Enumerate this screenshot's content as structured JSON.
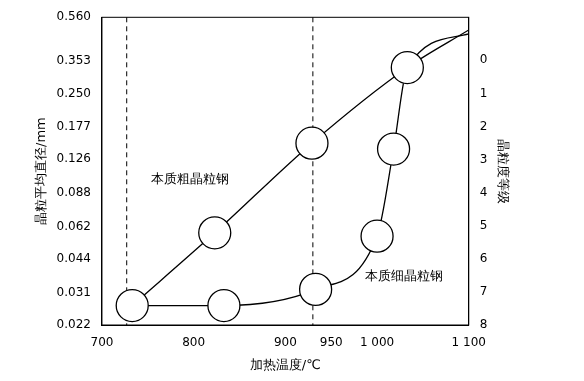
{
  "chart_data": {
    "type": "line",
    "x_label": "加热温度/℃",
    "y_label": "晶粒平均直径/mm",
    "y2_label": "晶粒度等级",
    "log": "y",
    "grid": false,
    "color": "#000000",
    "xlim": [
      700,
      1100
    ],
    "xticks": [
      700,
      800,
      900,
      950,
      {
        "value": 1000,
        "label": "1 000"
      },
      {
        "value": 1100,
        "label": "1 100"
      }
    ],
    "ylim": [
      0.022,
      0.56
    ],
    "yticks": [
      0.022,
      0.031,
      0.044,
      0.062,
      0.088,
      0.126,
      0.177,
      {
        "value": 0.25,
        "label": "0.250"
      },
      0.353,
      {
        "value": 0.56,
        "label": "0.560"
      }
    ],
    "y2lim": [
      8,
      -1.3
    ],
    "y2ticks": [
      0,
      1,
      2,
      3,
      4,
      5,
      6,
      7,
      8
    ],
    "vlines": [
      727,
      930
    ],
    "series": [
      {
        "name": "本质粗晶粒钢",
        "color": "#000000",
        "line_style": "solid",
        "marker": "none",
        "x": [
          733,
          823,
          929,
          1033,
          1100
        ],
        "values": [
          0.027,
          0.058,
          0.149,
          0.33,
          0.49
        ],
        "label_x": 796,
        "label_y": 0.102
      },
      {
        "name": "本质细晶粒钢",
        "color": "#000000",
        "line_style": "solid",
        "marker": "none",
        "x": [
          733,
          833,
          933,
          1000,
          1018,
          1033,
          1100
        ],
        "values": [
          0.027,
          0.027,
          0.032,
          0.056,
          0.14,
          0.33,
          0.47
        ],
        "label_x": 1029,
        "label_y": 0.0367
      }
    ],
    "samples": {
      "marker": "circle",
      "points": [
        {
          "x": 733,
          "y": 0.027
        },
        {
          "x": 823,
          "y": 0.058
        },
        {
          "x": 929,
          "y": 0.149
        },
        {
          "x": 1033,
          "y": 0.33
        },
        {
          "x": 833,
          "y": 0.027
        },
        {
          "x": 933,
          "y": 0.032
        },
        {
          "x": 1000,
          "y": 0.056
        },
        {
          "x": 1018,
          "y": 0.14
        }
      ]
    }
  }
}
